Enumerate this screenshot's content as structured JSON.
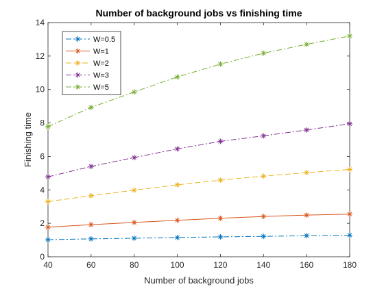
{
  "chart_data": {
    "type": "line",
    "title": "Number of background jobs vs finishing time",
    "xlabel": "Number of background jobs",
    "ylabel": "Finishing time",
    "x": [
      40,
      60,
      80,
      100,
      120,
      140,
      160,
      180
    ],
    "xlim": [
      40,
      180
    ],
    "ylim": [
      0,
      14
    ],
    "xticks": [
      40,
      60,
      80,
      100,
      120,
      140,
      160,
      180
    ],
    "yticks": [
      0,
      2,
      4,
      6,
      8,
      10,
      12,
      14
    ],
    "grid": false,
    "box": true,
    "legend_location": "top-left",
    "series": [
      {
        "name": "W=0.5",
        "color": "#0072BD",
        "line_style": "dash-dot",
        "marker": "asterisk",
        "values": [
          1.02,
          1.07,
          1.11,
          1.15,
          1.19,
          1.22,
          1.26,
          1.29
        ]
      },
      {
        "name": "W=1",
        "color": "#D95319",
        "line_style": "solid",
        "marker": "asterisk",
        "values": [
          1.77,
          1.92,
          2.05,
          2.18,
          2.3,
          2.41,
          2.49,
          2.55
        ]
      },
      {
        "name": "W=2",
        "color": "#EDB120",
        "line_style": "dashed",
        "marker": "asterisk",
        "values": [
          3.3,
          3.65,
          3.98,
          4.3,
          4.58,
          4.82,
          5.03,
          5.22
        ]
      },
      {
        "name": "W=3",
        "color": "#7E2F8E",
        "line_style": "dash-dot",
        "marker": "asterisk",
        "values": [
          4.78,
          5.4,
          5.93,
          6.45,
          6.9,
          7.23,
          7.58,
          7.95
        ]
      },
      {
        "name": "W=5",
        "color": "#77AC30",
        "line_style": "dash-dot",
        "marker": "asterisk",
        "values": [
          7.78,
          8.93,
          9.85,
          10.75,
          11.52,
          12.17,
          12.7,
          13.2
        ]
      }
    ]
  }
}
